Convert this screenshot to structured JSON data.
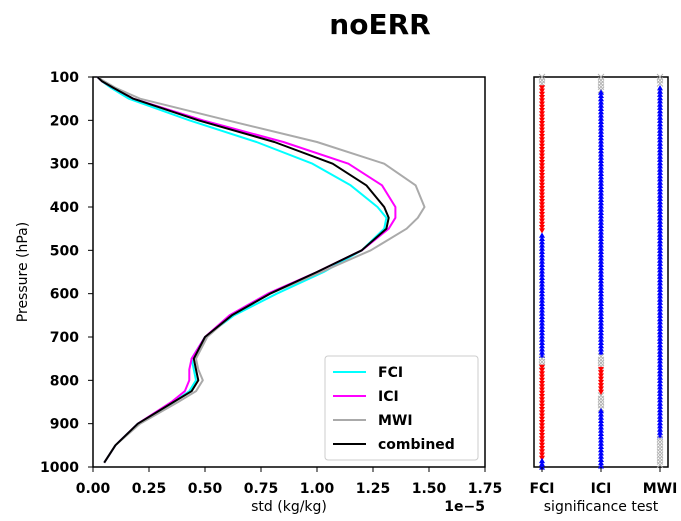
{
  "chart_data": [
    {
      "type": "line",
      "title": "noERR",
      "xlabel": "std (kg/kg)",
      "x_scale_label": "1e−5",
      "ylabel": "Pressure (hPa)",
      "xlim": [
        0.0,
        1.75
      ],
      "ylim": [
        1000,
        100
      ],
      "y_inverted": true,
      "x_ticks": [
        "0.00",
        "0.25",
        "0.50",
        "0.75",
        "1.00",
        "1.25",
        "1.50",
        "1.75"
      ],
      "y_ticks": [
        "100",
        "200",
        "300",
        "400",
        "500",
        "600",
        "700",
        "800",
        "900",
        "1000"
      ],
      "grid": false,
      "legend_position": "lower-right",
      "pressure": [
        100,
        110,
        125,
        150,
        200,
        250,
        300,
        350,
        400,
        425,
        450,
        500,
        550,
        600,
        650,
        700,
        750,
        775,
        800,
        825,
        850,
        900,
        950,
        990
      ],
      "series": [
        {
          "name": "FCI",
          "color": "#00ffff",
          "values": [
            0.02,
            0.04,
            0.08,
            0.16,
            0.43,
            0.73,
            0.98,
            1.15,
            1.27,
            1.31,
            1.3,
            1.2,
            1.03,
            0.82,
            0.63,
            0.5,
            0.44,
            0.45,
            0.46,
            0.43,
            0.36,
            0.2,
            0.1,
            0.05
          ]
        },
        {
          "name": "ICI",
          "color": "#ff00ff",
          "values": [
            0.02,
            0.04,
            0.09,
            0.18,
            0.49,
            0.85,
            1.14,
            1.29,
            1.35,
            1.35,
            1.32,
            1.2,
            1.0,
            0.78,
            0.61,
            0.5,
            0.44,
            0.43,
            0.43,
            0.41,
            0.35,
            0.2,
            0.1,
            0.05
          ]
        },
        {
          "name": "MWI",
          "color": "#aaaaaa",
          "values": [
            0.02,
            0.05,
            0.1,
            0.21,
            0.6,
            1.0,
            1.3,
            1.44,
            1.48,
            1.45,
            1.4,
            1.24,
            1.02,
            0.79,
            0.62,
            0.51,
            0.46,
            0.47,
            0.49,
            0.46,
            0.38,
            0.21,
            0.1,
            0.05
          ]
        },
        {
          "name": "combined",
          "color": "#000000",
          "values": [
            0.02,
            0.04,
            0.09,
            0.18,
            0.47,
            0.81,
            1.07,
            1.22,
            1.3,
            1.32,
            1.31,
            1.2,
            1.0,
            0.79,
            0.62,
            0.5,
            0.45,
            0.46,
            0.47,
            0.44,
            0.36,
            0.2,
            0.1,
            0.05
          ]
        }
      ]
    },
    {
      "type": "scatter",
      "xlabel": "significance test",
      "categories": [
        "FCI",
        "ICI",
        "MWI"
      ],
      "ylim": [
        1000,
        100
      ],
      "marker_legend": {
        "up": "blue triangle up",
        "down": "red triangle down",
        "none": "grey x"
      },
      "colors": {
        "up": "#0000ff",
        "down": "#ff0000",
        "none": "#b0b0b0"
      },
      "columns": [
        {
          "name": "FCI",
          "segments": [
            {
              "from": 100,
              "to": 120,
              "marker": "none"
            },
            {
              "from": 125,
              "to": 460,
              "marker": "down"
            },
            {
              "from": 465,
              "to": 745,
              "marker": "up"
            },
            {
              "from": 750,
              "to": 765,
              "marker": "none"
            },
            {
              "from": 770,
              "to": 980,
              "marker": "down"
            },
            {
              "from": 985,
              "to": 1000,
              "marker": "up"
            }
          ]
        },
        {
          "name": "ICI",
          "segments": [
            {
              "from": 100,
              "to": 130,
              "marker": "none"
            },
            {
              "from": 135,
              "to": 740,
              "marker": "up"
            },
            {
              "from": 745,
              "to": 770,
              "marker": "none"
            },
            {
              "from": 775,
              "to": 830,
              "marker": "down"
            },
            {
              "from": 835,
              "to": 865,
              "marker": "none"
            },
            {
              "from": 870,
              "to": 1000,
              "marker": "up"
            }
          ]
        },
        {
          "name": "MWI",
          "segments": [
            {
              "from": 100,
              "to": 120,
              "marker": "none"
            },
            {
              "from": 125,
              "to": 930,
              "marker": "up"
            },
            {
              "from": 935,
              "to": 1000,
              "marker": "none"
            }
          ]
        }
      ]
    }
  ]
}
